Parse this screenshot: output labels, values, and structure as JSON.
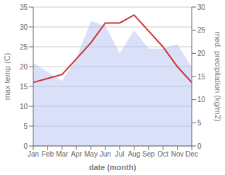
{
  "chart_data": {
    "type": "line",
    "categories": [
      "Jan",
      "Feb",
      "Mar",
      "Apr",
      "May",
      "Jun",
      "Jul",
      "Aug",
      "Sep",
      "Oct",
      "Nov",
      "Dec"
    ],
    "series": [
      {
        "type": "area",
        "axis": "y2",
        "color": "#aabbee",
        "values": [
          18,
          16,
          14,
          19,
          27,
          26,
          20,
          25,
          21,
          21,
          22,
          17
        ]
      },
      {
        "type": "line",
        "color": "#cc3333",
        "values": [
          16,
          17,
          18,
          22,
          26,
          31,
          31,
          33,
          29,
          25,
          20,
          16
        ]
      }
    ],
    "xlabel": "date (month)",
    "ylabel": "max temp (C)",
    "y2label": "med. precipitation (kg/m2)",
    "ylim": [
      0,
      35
    ],
    "yticks": [
      0,
      5,
      10,
      15,
      20,
      25,
      30,
      35
    ],
    "y2lim": [
      0,
      30
    ],
    "y2ticks": [
      0,
      5,
      10,
      15,
      20,
      25,
      30
    ],
    "grid": true
  }
}
